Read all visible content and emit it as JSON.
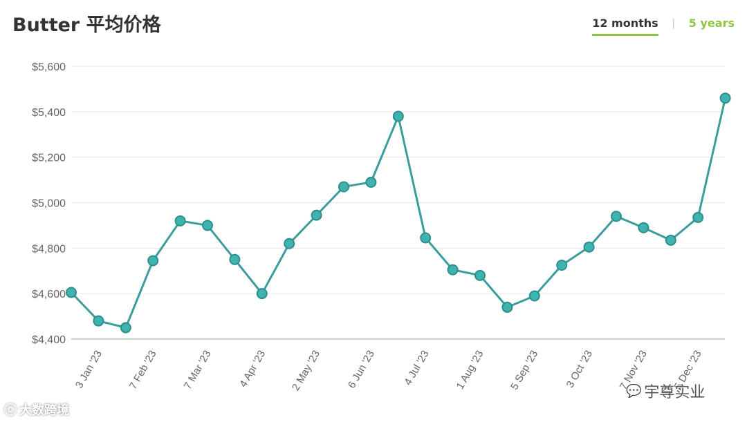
{
  "header": {
    "title": "Butter 平均价格",
    "tabs": [
      {
        "label": "12 months",
        "active": true
      },
      {
        "label": "5 years",
        "active": false
      }
    ],
    "separator": "|"
  },
  "colors": {
    "line": "#3a9c9c",
    "point_fill": "#3fb3b0",
    "point_stroke": "#2c8f8c",
    "grid": "#e6e6e6",
    "tab_accent": "#8cc63f"
  },
  "chart_data": {
    "type": "line",
    "title": "Butter 平均价格",
    "xlabel": "",
    "ylabel": "",
    "ylim": [
      4400,
      5600
    ],
    "yticks": [
      4400,
      4600,
      4800,
      5000,
      5200,
      5400,
      5600
    ],
    "ytick_labels": [
      "$4,400",
      "$4,600",
      "$4,800",
      "$5,000",
      "$5,200",
      "$5,400",
      "$5,600"
    ],
    "xtick_labels": [
      "3 Jan '23",
      "7 Feb '23",
      "7 Mar '23",
      "4 Apr '23",
      "2 May '23",
      "6 Jun '23",
      "4 Jul '23",
      "1 Aug '23",
      "5 Sep '23",
      "3 Oct '23",
      "7 Nov '23",
      "5 Dec '23"
    ],
    "xtick_positions": [
      1,
      3,
      5,
      7,
      9,
      11,
      13,
      15,
      17,
      19,
      21,
      23
    ],
    "grid": true,
    "legend": "none",
    "series": [
      {
        "values": [
          4605,
          4480,
          4450,
          4745,
          4920,
          4900,
          4750,
          4600,
          4820,
          4945,
          5070,
          5090,
          5380,
          4845,
          4705,
          4680,
          4540,
          4590,
          4725,
          4805,
          4940,
          4890,
          4835,
          4935,
          5460
        ]
      }
    ]
  },
  "watermarks": {
    "left_text": "大数跨境",
    "left_icon": "wechat-like-logo",
    "right_text": "宇尊实业",
    "right_icon": "wechat-icon"
  }
}
